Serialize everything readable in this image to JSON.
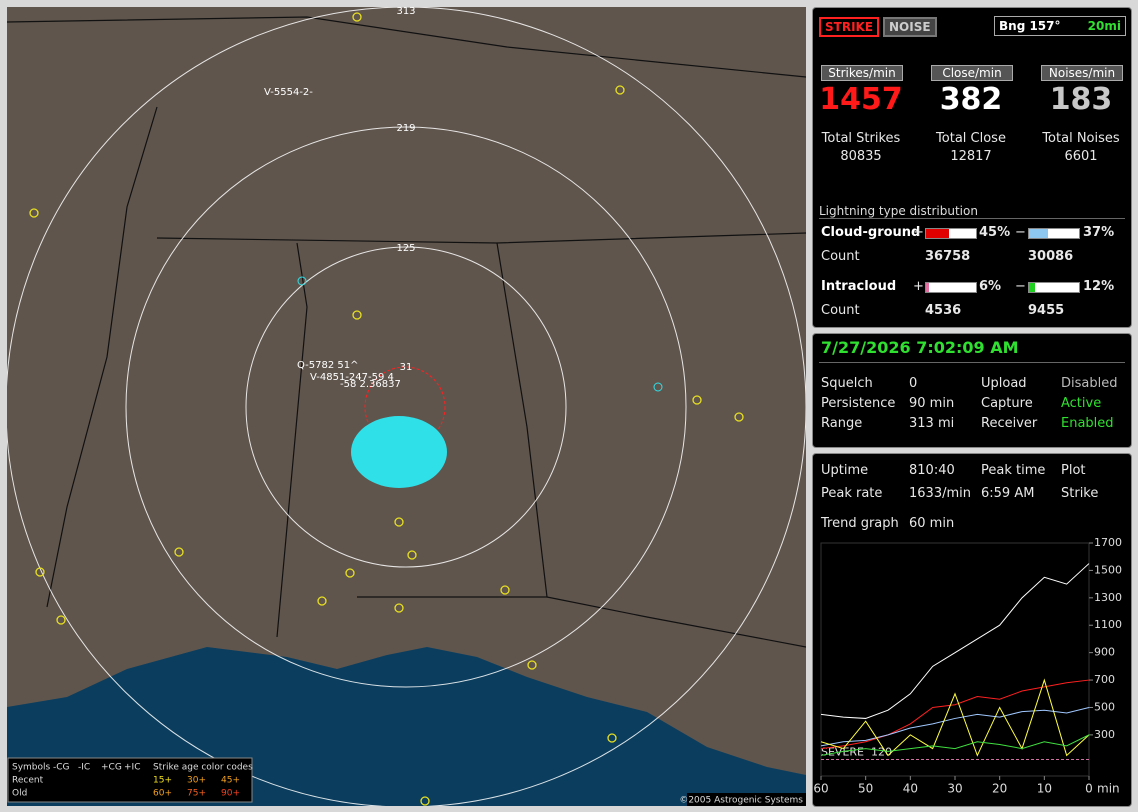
{
  "map": {
    "ring_labels": [
      "313",
      "219",
      "125",
      "31"
    ],
    "strike_labels": [
      "V-5554-2-",
      "Q-5782  51^",
      "V-4851-247-59 4",
      "-58 2.36837"
    ],
    "copyright": "©2005 Astrogenic Systems",
    "legend": {
      "symbols": "Symbols",
      "types": [
        "-CG",
        "-IC",
        "+CG",
        "+IC"
      ],
      "age_title": "Strike age color codes",
      "recent": "Recent",
      "old": "Old",
      "recent_ages": [
        "15+",
        "30+",
        "45+"
      ],
      "old_ages": [
        "60+",
        "75+",
        "90+"
      ]
    }
  },
  "header": {
    "strike_button": "STRIKE",
    "noise_button": "NOISE",
    "bearing": "Bng 157°",
    "distance": "20mi"
  },
  "rates": [
    {
      "label": "Strikes/min",
      "value": "1457",
      "total_label": "Total Strikes",
      "total": "80835",
      "color": "#ff1a1a"
    },
    {
      "label": "Close/min",
      "value": "382",
      "total_label": "Total Close",
      "total": "12817",
      "color": "#ffffff"
    },
    {
      "label": "Noises/min",
      "value": "183",
      "total_label": "Total Noises",
      "total": "6601",
      "color": "#c8c8c8"
    }
  ],
  "distribution": {
    "title": "Lightning type distribution",
    "count_label": "Count",
    "rows": [
      {
        "name": "Cloud-ground",
        "plus_sign": "+",
        "plus": 45,
        "plus_label": "45%",
        "plus_color": "#e00000",
        "minus_sign": "−",
        "minus": 37,
        "minus_label": "37%",
        "minus_color": "#8ec8f0",
        "plus_count": "36758",
        "minus_count": "30086"
      },
      {
        "name": "Intracloud",
        "plus_sign": "+",
        "plus": 6,
        "plus_label": "6%",
        "plus_color": "#e070a0",
        "minus_sign": "−",
        "minus": 12,
        "minus_label": "12%",
        "minus_color": "#20d020",
        "plus_count": "4536",
        "minus_count": "9455"
      }
    ]
  },
  "status": {
    "datetime": "7/27/2026 7:02:09 AM",
    "left": [
      [
        "Squelch",
        "0"
      ],
      [
        "Persistence",
        "90 min"
      ],
      [
        "Range",
        "313 mi"
      ]
    ],
    "right": [
      [
        "Upload",
        "Disabled"
      ],
      [
        "Capture",
        "Active"
      ],
      [
        "Receiver",
        "Enabled"
      ]
    ]
  },
  "stats": {
    "uptime_label": "Uptime",
    "uptime": "810:40",
    "peak_time_label": "Peak time",
    "peak_time": "6:59 AM",
    "plot_label": "Plot",
    "plot": "Strike",
    "peak_rate_label": "Peak rate",
    "peak_rate": "1633/min",
    "trend_label": "Trend graph",
    "trend": "60 min"
  },
  "chart_data": {
    "type": "line",
    "x_label": "min",
    "x": [
      60,
      55,
      50,
      45,
      40,
      35,
      30,
      25,
      20,
      15,
      10,
      5,
      0
    ],
    "xlim": [
      60,
      0
    ],
    "xticks": [
      60,
      50,
      40,
      30,
      20,
      10,
      0
    ],
    "ylim": [
      0,
      1700
    ],
    "yticks": [
      300,
      500,
      700,
      900,
      1100,
      1300,
      1500,
      1700
    ],
    "threshold": {
      "label": "SEVERE",
      "value": 120,
      "color": "#d070a0"
    },
    "series": [
      {
        "color": "#ffffff",
        "values": [
          450,
          430,
          420,
          480,
          600,
          800,
          900,
          1000,
          1100,
          1300,
          1450,
          1400,
          1550
        ]
      },
      {
        "color": "#ff2020",
        "values": [
          200,
          220,
          250,
          300,
          380,
          500,
          520,
          580,
          560,
          620,
          650,
          680,
          700
        ]
      },
      {
        "color": "#a0c8ff",
        "values": [
          220,
          250,
          260,
          300,
          350,
          380,
          420,
          450,
          430,
          470,
          480,
          460,
          500
        ]
      },
      {
        "color": "#ffff40",
        "values": [
          250,
          200,
          400,
          150,
          300,
          200,
          600,
          150,
          500,
          200,
          700,
          150,
          300
        ]
      },
      {
        "color": "#40e040",
        "values": [
          150,
          180,
          200,
          180,
          200,
          220,
          200,
          250,
          230,
          200,
          250,
          220,
          300
        ]
      }
    ]
  }
}
